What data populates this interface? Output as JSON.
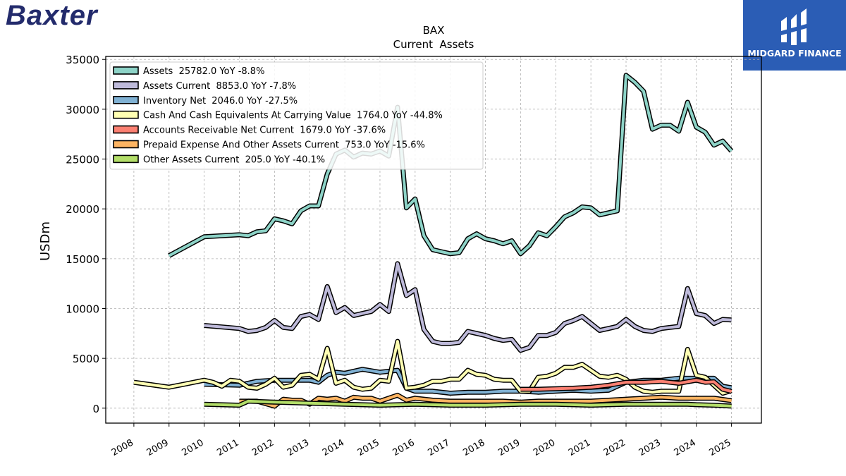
{
  "brand": {
    "name": "Baxter",
    "color": "#232b6c"
  },
  "badge": {
    "label": "MIDGARD FINANCE",
    "bg": "#2b5db5",
    "icon": "midgard-mark-icon"
  },
  "chart_data": {
    "type": "line",
    "title": "BAX",
    "subtitle": "Current  Assets",
    "xlabel": "",
    "ylabel": "USDm",
    "x_tick_labels": [
      "2008",
      "2009",
      "2010",
      "2011",
      "2012",
      "2013",
      "2014",
      "2015",
      "2016",
      "2017",
      "2018",
      "2019",
      "2020",
      "2021",
      "2022",
      "2023",
      "2024",
      "2025"
    ],
    "y_tick_labels": [
      "0",
      "5000",
      "10000",
      "15000",
      "20000",
      "25000",
      "30000",
      "35000"
    ],
    "ylim": [
      -1500,
      35300
    ],
    "xlim": [
      2007.2,
      2025.85
    ],
    "grid": true,
    "legend_position": "top-left",
    "series": [
      {
        "name": "Assets  25782.0 YoY -8.8%",
        "color": "#8dd3c7",
        "points": [
          [
            2009.0,
            15300
          ],
          [
            2010.0,
            17200
          ],
          [
            2011.0,
            17400
          ],
          [
            2011.25,
            17300
          ],
          [
            2011.5,
            17700
          ],
          [
            2011.75,
            17800
          ],
          [
            2012.0,
            19000
          ],
          [
            2012.25,
            18800
          ],
          [
            2012.5,
            18500
          ],
          [
            2012.75,
            19800
          ],
          [
            2013.0,
            20300
          ],
          [
            2013.25,
            20300
          ],
          [
            2013.5,
            23500
          ],
          [
            2013.75,
            25500
          ],
          [
            2014.0,
            25900
          ],
          [
            2014.25,
            25200
          ],
          [
            2014.5,
            25600
          ],
          [
            2014.75,
            25500
          ],
          [
            2015.0,
            25800
          ],
          [
            2015.25,
            25300
          ],
          [
            2015.5,
            30200
          ],
          [
            2015.75,
            20100
          ],
          [
            2016.0,
            21000
          ],
          [
            2016.25,
            17300
          ],
          [
            2016.5,
            15900
          ],
          [
            2016.75,
            15700
          ],
          [
            2017.0,
            15500
          ],
          [
            2017.25,
            15600
          ],
          [
            2017.5,
            17000
          ],
          [
            2017.75,
            17500
          ],
          [
            2018.0,
            17000
          ],
          [
            2018.25,
            16800
          ],
          [
            2018.5,
            16500
          ],
          [
            2018.75,
            16800
          ],
          [
            2019.0,
            15500
          ],
          [
            2019.25,
            16300
          ],
          [
            2019.5,
            17600
          ],
          [
            2019.75,
            17300
          ],
          [
            2020.0,
            18200
          ],
          [
            2020.25,
            19200
          ],
          [
            2020.5,
            19600
          ],
          [
            2020.75,
            20200
          ],
          [
            2021.0,
            20100
          ],
          [
            2021.25,
            19400
          ],
          [
            2021.5,
            19600
          ],
          [
            2021.75,
            19800
          ],
          [
            2022.0,
            33400
          ],
          [
            2022.25,
            32700
          ],
          [
            2022.5,
            31800
          ],
          [
            2022.75,
            28000
          ],
          [
            2023.0,
            28400
          ],
          [
            2023.25,
            28400
          ],
          [
            2023.5,
            27800
          ],
          [
            2023.75,
            30700
          ],
          [
            2024.0,
            28200
          ],
          [
            2024.25,
            27700
          ],
          [
            2024.5,
            26400
          ],
          [
            2024.75,
            26800
          ],
          [
            2025.0,
            25800
          ]
        ]
      },
      {
        "name": "Assets Current  8853.0 YoY -7.8%",
        "color": "#bebada",
        "points": [
          [
            2010.0,
            8300
          ],
          [
            2011.0,
            8000
          ],
          [
            2011.25,
            7700
          ],
          [
            2011.5,
            7800
          ],
          [
            2011.75,
            8100
          ],
          [
            2012.0,
            8800
          ],
          [
            2012.25,
            8100
          ],
          [
            2012.5,
            8000
          ],
          [
            2012.75,
            9200
          ],
          [
            2013.0,
            9400
          ],
          [
            2013.25,
            8900
          ],
          [
            2013.5,
            12200
          ],
          [
            2013.75,
            9600
          ],
          [
            2014.0,
            10100
          ],
          [
            2014.25,
            9300
          ],
          [
            2014.5,
            9500
          ],
          [
            2014.75,
            9700
          ],
          [
            2015.0,
            10400
          ],
          [
            2015.25,
            9700
          ],
          [
            2015.5,
            14500
          ],
          [
            2015.75,
            11300
          ],
          [
            2016.0,
            11900
          ],
          [
            2016.25,
            7900
          ],
          [
            2016.5,
            6700
          ],
          [
            2016.75,
            6500
          ],
          [
            2017.0,
            6500
          ],
          [
            2017.25,
            6600
          ],
          [
            2017.5,
            7700
          ],
          [
            2017.75,
            7500
          ],
          [
            2018.0,
            7300
          ],
          [
            2018.25,
            7000
          ],
          [
            2018.5,
            6800
          ],
          [
            2018.75,
            6900
          ],
          [
            2019.0,
            5800
          ],
          [
            2019.25,
            6100
          ],
          [
            2019.5,
            7300
          ],
          [
            2019.75,
            7300
          ],
          [
            2020.0,
            7600
          ],
          [
            2020.25,
            8500
          ],
          [
            2020.5,
            8800
          ],
          [
            2020.75,
            9200
          ],
          [
            2021.0,
            8500
          ],
          [
            2021.25,
            7800
          ],
          [
            2021.5,
            8000
          ],
          [
            2021.75,
            8200
          ],
          [
            2022.0,
            8900
          ],
          [
            2022.25,
            8200
          ],
          [
            2022.5,
            7800
          ],
          [
            2022.75,
            7700
          ],
          [
            2023.0,
            8000
          ],
          [
            2023.25,
            8100
          ],
          [
            2023.5,
            8200
          ],
          [
            2023.75,
            12000
          ],
          [
            2024.0,
            9500
          ],
          [
            2024.25,
            9300
          ],
          [
            2024.5,
            8500
          ],
          [
            2024.75,
            8900
          ],
          [
            2025.0,
            8850
          ]
        ]
      },
      {
        "name": "Inventory Net  2046.0 YoY -27.5%",
        "color": "#80b1d3",
        "points": [
          [
            2010.0,
            2400
          ],
          [
            2011.0,
            2300
          ],
          [
            2011.5,
            2700
          ],
          [
            2012.0,
            2800
          ],
          [
            2012.5,
            2800
          ],
          [
            2013.0,
            2800
          ],
          [
            2013.25,
            2600
          ],
          [
            2013.5,
            3300
          ],
          [
            2013.75,
            3600
          ],
          [
            2014.0,
            3500
          ],
          [
            2014.5,
            3900
          ],
          [
            2015.0,
            3600
          ],
          [
            2015.5,
            3800
          ],
          [
            2015.75,
            2000
          ],
          [
            2016.0,
            1700
          ],
          [
            2016.5,
            1700
          ],
          [
            2017.0,
            1500
          ],
          [
            2017.5,
            1600
          ],
          [
            2018.0,
            1600
          ],
          [
            2018.5,
            1700
          ],
          [
            2019.0,
            1700
          ],
          [
            2019.5,
            1600
          ],
          [
            2020.0,
            1700
          ],
          [
            2020.5,
            1800
          ],
          [
            2021.0,
            1700
          ],
          [
            2021.5,
            1800
          ],
          [
            2022.0,
            2600
          ],
          [
            2022.5,
            2800
          ],
          [
            2023.0,
            2800
          ],
          [
            2023.5,
            3000
          ],
          [
            2024.0,
            3000
          ],
          [
            2024.5,
            3000
          ],
          [
            2024.75,
            2200
          ],
          [
            2025.0,
            2050
          ]
        ]
      },
      {
        "name": "Cash And Cash Equivalents At Carrying Value  1764.0 YoY -44.8%",
        "color": "#ffffb3",
        "points": [
          [
            2008.0,
            2600
          ],
          [
            2009.0,
            2100
          ],
          [
            2010.0,
            2800
          ],
          [
            2010.25,
            2600
          ],
          [
            2010.5,
            2200
          ],
          [
            2010.75,
            2800
          ],
          [
            2011.0,
            2700
          ],
          [
            2011.25,
            2100
          ],
          [
            2011.5,
            2000
          ],
          [
            2011.75,
            2400
          ],
          [
            2012.0,
            3000
          ],
          [
            2012.25,
            2100
          ],
          [
            2012.5,
            2300
          ],
          [
            2012.75,
            3300
          ],
          [
            2013.0,
            3400
          ],
          [
            2013.25,
            2900
          ],
          [
            2013.5,
            6000
          ],
          [
            2013.75,
            2500
          ],
          [
            2014.0,
            2800
          ],
          [
            2014.25,
            2100
          ],
          [
            2014.5,
            1900
          ],
          [
            2014.75,
            2000
          ],
          [
            2015.0,
            2800
          ],
          [
            2015.25,
            2700
          ],
          [
            2015.5,
            6700
          ],
          [
            2015.75,
            2000
          ],
          [
            2016.0,
            2100
          ],
          [
            2016.25,
            2300
          ],
          [
            2016.5,
            2700
          ],
          [
            2016.75,
            2700
          ],
          [
            2017.0,
            2900
          ],
          [
            2017.25,
            2900
          ],
          [
            2017.5,
            3800
          ],
          [
            2017.75,
            3400
          ],
          [
            2018.0,
            3300
          ],
          [
            2018.25,
            2900
          ],
          [
            2018.5,
            2800
          ],
          [
            2018.75,
            2800
          ],
          [
            2019.0,
            1700
          ],
          [
            2019.25,
            1700
          ],
          [
            2019.5,
            3100
          ],
          [
            2019.75,
            3200
          ],
          [
            2020.0,
            3500
          ],
          [
            2020.25,
            4100
          ],
          [
            2020.5,
            4100
          ],
          [
            2020.75,
            4400
          ],
          [
            2021.0,
            3800
          ],
          [
            2021.25,
            3200
          ],
          [
            2021.5,
            3100
          ],
          [
            2021.75,
            3300
          ],
          [
            2022.0,
            2900
          ],
          [
            2022.25,
            2100
          ],
          [
            2022.5,
            1700
          ],
          [
            2022.75,
            1600
          ],
          [
            2023.0,
            1700
          ],
          [
            2023.25,
            1700
          ],
          [
            2023.5,
            1700
          ],
          [
            2023.75,
            5900
          ],
          [
            2024.0,
            3300
          ],
          [
            2024.25,
            3100
          ],
          [
            2024.5,
            2300
          ],
          [
            2024.75,
            1500
          ],
          [
            2025.0,
            1764
          ]
        ]
      },
      {
        "name": "Accounts Receivable Net Current  1679.0 YoY -37.6%",
        "color": "#fb8072",
        "points": [
          [
            2019.0,
            1900
          ],
          [
            2019.5,
            1900
          ],
          [
            2020.0,
            1950
          ],
          [
            2020.5,
            2000
          ],
          [
            2021.0,
            2100
          ],
          [
            2021.5,
            2300
          ],
          [
            2022.0,
            2600
          ],
          [
            2022.5,
            2600
          ],
          [
            2023.0,
            2700
          ],
          [
            2023.5,
            2500
          ],
          [
            2024.0,
            2800
          ],
          [
            2024.25,
            2600
          ],
          [
            2024.5,
            2650
          ],
          [
            2024.75,
            1900
          ],
          [
            2025.0,
            1679
          ]
        ]
      },
      {
        "name": "Prepaid Expense And Other Assets Current  753.0 YoY -15.6%",
        "color": "#fdb462",
        "points": [
          [
            2011.0,
            700
          ],
          [
            2011.5,
            700
          ],
          [
            2012.0,
            200
          ],
          [
            2012.25,
            900
          ],
          [
            2012.5,
            800
          ],
          [
            2012.75,
            800
          ],
          [
            2013.0,
            400
          ],
          [
            2013.25,
            1000
          ],
          [
            2013.5,
            900
          ],
          [
            2013.75,
            1000
          ],
          [
            2014.0,
            700
          ],
          [
            2014.25,
            1100
          ],
          [
            2014.5,
            1000
          ],
          [
            2014.75,
            1000
          ],
          [
            2015.0,
            700
          ],
          [
            2015.25,
            1000
          ],
          [
            2015.5,
            1300
          ],
          [
            2015.75,
            800
          ],
          [
            2016.0,
            1000
          ],
          [
            2016.5,
            800
          ],
          [
            2017.0,
            700
          ],
          [
            2017.5,
            700
          ],
          [
            2018.0,
            700
          ],
          [
            2018.5,
            700
          ],
          [
            2019.0,
            600
          ],
          [
            2019.5,
            700
          ],
          [
            2020.0,
            700
          ],
          [
            2020.5,
            700
          ],
          [
            2021.0,
            700
          ],
          [
            2021.5,
            800
          ],
          [
            2022.0,
            900
          ],
          [
            2022.5,
            1000
          ],
          [
            2023.0,
            1100
          ],
          [
            2023.5,
            1000
          ],
          [
            2024.0,
            1000
          ],
          [
            2024.5,
            1000
          ],
          [
            2025.0,
            753
          ]
        ]
      },
      {
        "name": "Other Assets Current  205.0 YoY -40.1%",
        "color": "#b3de69",
        "points": [
          [
            2010.0,
            400
          ],
          [
            2011.0,
            300
          ],
          [
            2011.25,
            700
          ],
          [
            2012.0,
            600
          ],
          [
            2013.0,
            500
          ],
          [
            2014.0,
            400
          ],
          [
            2015.0,
            300
          ],
          [
            2016.0,
            400
          ],
          [
            2017.0,
            300
          ],
          [
            2018.0,
            300
          ],
          [
            2019.0,
            400
          ],
          [
            2020.0,
            400
          ],
          [
            2021.0,
            300
          ],
          [
            2022.0,
            400
          ],
          [
            2023.0,
            400
          ],
          [
            2023.75,
            400
          ],
          [
            2024.0,
            350
          ],
          [
            2024.5,
            300
          ],
          [
            2025.0,
            205
          ]
        ]
      }
    ]
  }
}
